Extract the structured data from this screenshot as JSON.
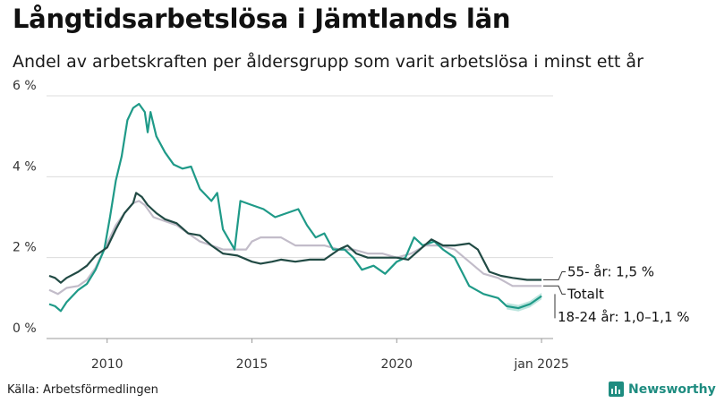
{
  "title": "Långtidsarbetslösa i Jämtlands län",
  "subtitle": "Andel av arbetskraften per åldersgrupp som varit arbetslösa i minst ett år",
  "source": "Källa: Arbetsförmedlingen",
  "brand": "Newsworthy",
  "chart_data": {
    "type": "line",
    "x_unit": "year",
    "xlim": [
      2008.0,
      2025.4
    ],
    "ylim": [
      0,
      6
    ],
    "y_ticks": [
      {
        "value": 0,
        "label": "0 %"
      },
      {
        "value": 2,
        "label": "2 %"
      },
      {
        "value": 4,
        "label": "4 %"
      },
      {
        "value": 6,
        "label": "6 %"
      }
    ],
    "x_ticks": [
      {
        "value": 2010,
        "label": "2010"
      },
      {
        "value": 2015,
        "label": "2015"
      },
      {
        "value": 2020,
        "label": "2020"
      },
      {
        "value": 2025.0,
        "label": "jan 2025"
      }
    ],
    "grid": "horizontal",
    "series": [
      {
        "name": "Totalt",
        "color": "#c2bcc9",
        "label": "Totalt",
        "points": [
          [
            2008.0,
            1.2
          ],
          [
            2008.3,
            1.1
          ],
          [
            2008.6,
            1.25
          ],
          [
            2009.0,
            1.3
          ],
          [
            2009.3,
            1.45
          ],
          [
            2009.6,
            1.75
          ],
          [
            2009.9,
            2.2
          ],
          [
            2010.3,
            2.8
          ],
          [
            2010.6,
            3.1
          ],
          [
            2010.9,
            3.35
          ],
          [
            2011.1,
            3.4
          ],
          [
            2011.3,
            3.3
          ],
          [
            2011.6,
            3.0
          ],
          [
            2012.0,
            2.9
          ],
          [
            2012.4,
            2.8
          ],
          [
            2012.8,
            2.6
          ],
          [
            2013.2,
            2.4
          ],
          [
            2013.6,
            2.3
          ],
          [
            2014.0,
            2.2
          ],
          [
            2014.5,
            2.2
          ],
          [
            2014.8,
            2.2
          ],
          [
            2015.0,
            2.4
          ],
          [
            2015.3,
            2.5
          ],
          [
            2016.0,
            2.5
          ],
          [
            2016.5,
            2.3
          ],
          [
            2017.0,
            2.3
          ],
          [
            2017.5,
            2.3
          ],
          [
            2018.0,
            2.2
          ],
          [
            2018.5,
            2.2
          ],
          [
            2019.0,
            2.1
          ],
          [
            2019.5,
            2.1
          ],
          [
            2020.0,
            2.0
          ],
          [
            2020.5,
            2.1
          ],
          [
            2021.0,
            2.3
          ],
          [
            2021.5,
            2.3
          ],
          [
            2022.0,
            2.2
          ],
          [
            2022.5,
            1.9
          ],
          [
            2023.0,
            1.6
          ],
          [
            2023.5,
            1.5
          ],
          [
            2024.0,
            1.3
          ],
          [
            2024.5,
            1.3
          ],
          [
            2025.0,
            1.3
          ]
        ]
      },
      {
        "name": "55- år",
        "color": "#214a44",
        "label": "55- år: 1,5 %",
        "points": [
          [
            2008.0,
            1.55
          ],
          [
            2008.2,
            1.5
          ],
          [
            2008.4,
            1.38
          ],
          [
            2008.6,
            1.5
          ],
          [
            2009.0,
            1.65
          ],
          [
            2009.3,
            1.8
          ],
          [
            2009.6,
            2.05
          ],
          [
            2010.0,
            2.25
          ],
          [
            2010.3,
            2.7
          ],
          [
            2010.6,
            3.1
          ],
          [
            2010.9,
            3.35
          ],
          [
            2011.0,
            3.6
          ],
          [
            2011.2,
            3.5
          ],
          [
            2011.4,
            3.3
          ],
          [
            2011.7,
            3.1
          ],
          [
            2012.0,
            2.95
          ],
          [
            2012.4,
            2.85
          ],
          [
            2012.8,
            2.6
          ],
          [
            2013.2,
            2.55
          ],
          [
            2013.6,
            2.3
          ],
          [
            2014.0,
            2.1
          ],
          [
            2014.5,
            2.05
          ],
          [
            2015.0,
            1.9
          ],
          [
            2015.3,
            1.85
          ],
          [
            2015.7,
            1.9
          ],
          [
            2016.0,
            1.95
          ],
          [
            2016.5,
            1.9
          ],
          [
            2017.0,
            1.95
          ],
          [
            2017.5,
            1.95
          ],
          [
            2018.0,
            2.2
          ],
          [
            2018.3,
            2.3
          ],
          [
            2018.6,
            2.1
          ],
          [
            2019.0,
            2.0
          ],
          [
            2019.5,
            2.0
          ],
          [
            2020.0,
            2.0
          ],
          [
            2020.4,
            1.95
          ],
          [
            2020.8,
            2.2
          ],
          [
            2021.2,
            2.45
          ],
          [
            2021.6,
            2.3
          ],
          [
            2022.0,
            2.3
          ],
          [
            2022.5,
            2.35
          ],
          [
            2022.8,
            2.2
          ],
          [
            2023.2,
            1.65
          ],
          [
            2023.6,
            1.55
          ],
          [
            2024.0,
            1.5
          ],
          [
            2024.5,
            1.45
          ],
          [
            2024.8,
            1.45
          ],
          [
            2025.0,
            1.45
          ]
        ]
      },
      {
        "name": "18-24 år",
        "color": "#1f9a88",
        "band_color": "#8fd4c8",
        "label": "18-24 år: 1,0–1,1 %",
        "points": [
          [
            2008.0,
            0.85
          ],
          [
            2008.2,
            0.8
          ],
          [
            2008.4,
            0.68
          ],
          [
            2008.6,
            0.9
          ],
          [
            2009.0,
            1.2
          ],
          [
            2009.3,
            1.35
          ],
          [
            2009.6,
            1.7
          ],
          [
            2009.9,
            2.2
          ],
          [
            2010.1,
            3.0
          ],
          [
            2010.3,
            3.9
          ],
          [
            2010.5,
            4.5
          ],
          [
            2010.7,
            5.4
          ],
          [
            2010.9,
            5.7
          ],
          [
            2011.1,
            5.8
          ],
          [
            2011.3,
            5.6
          ],
          [
            2011.4,
            5.1
          ],
          [
            2011.5,
            5.6
          ],
          [
            2011.7,
            5.0
          ],
          [
            2012.0,
            4.6
          ],
          [
            2012.3,
            4.3
          ],
          [
            2012.6,
            4.2
          ],
          [
            2012.9,
            4.25
          ],
          [
            2013.2,
            3.7
          ],
          [
            2013.6,
            3.4
          ],
          [
            2013.8,
            3.6
          ],
          [
            2014.0,
            2.7
          ],
          [
            2014.4,
            2.2
          ],
          [
            2014.6,
            3.4
          ],
          [
            2015.0,
            3.3
          ],
          [
            2015.4,
            3.2
          ],
          [
            2015.8,
            3.0
          ],
          [
            2016.2,
            3.1
          ],
          [
            2016.6,
            3.2
          ],
          [
            2016.9,
            2.8
          ],
          [
            2017.2,
            2.5
          ],
          [
            2017.5,
            2.6
          ],
          [
            2017.8,
            2.2
          ],
          [
            2018.2,
            2.2
          ],
          [
            2018.5,
            2.0
          ],
          [
            2018.8,
            1.7
          ],
          [
            2019.2,
            1.8
          ],
          [
            2019.6,
            1.6
          ],
          [
            2020.0,
            1.9
          ],
          [
            2020.3,
            2.0
          ],
          [
            2020.6,
            2.5
          ],
          [
            2020.9,
            2.3
          ],
          [
            2021.3,
            2.4
          ],
          [
            2021.6,
            2.2
          ],
          [
            2022.0,
            2.0
          ],
          [
            2022.5,
            1.3
          ],
          [
            2023.0,
            1.1
          ],
          [
            2023.5,
            1.0
          ],
          [
            2023.8,
            0.8
          ],
          [
            2024.2,
            0.75
          ],
          [
            2024.6,
            0.85
          ],
          [
            2025.0,
            1.05
          ]
        ]
      }
    ],
    "band": {
      "series": "18-24 år",
      "from_x": 2023.8,
      "half_width": 0.08
    }
  }
}
